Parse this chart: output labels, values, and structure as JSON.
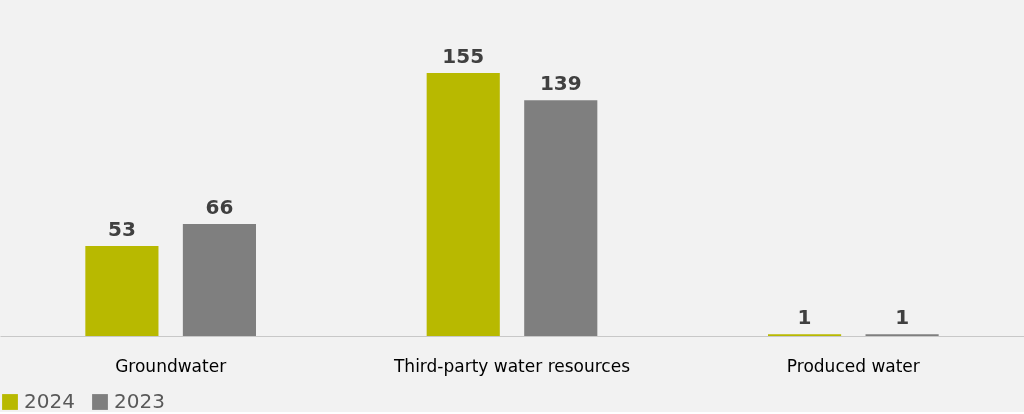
{
  "chart_data": {
    "type": "bar",
    "categories": [
      "Groundwater",
      "Third-party water resources",
      "Produced water"
    ],
    "series": [
      {
        "name": "2024",
        "color": "#b8b900",
        "values": [
          53,
          155,
          1
        ]
      },
      {
        "name": "2023",
        "color": "#7f7f7f",
        "values": [
          66,
          139,
          1
        ]
      }
    ],
    "data_labels": true,
    "legend": "bottom",
    "grid": false
  }
}
